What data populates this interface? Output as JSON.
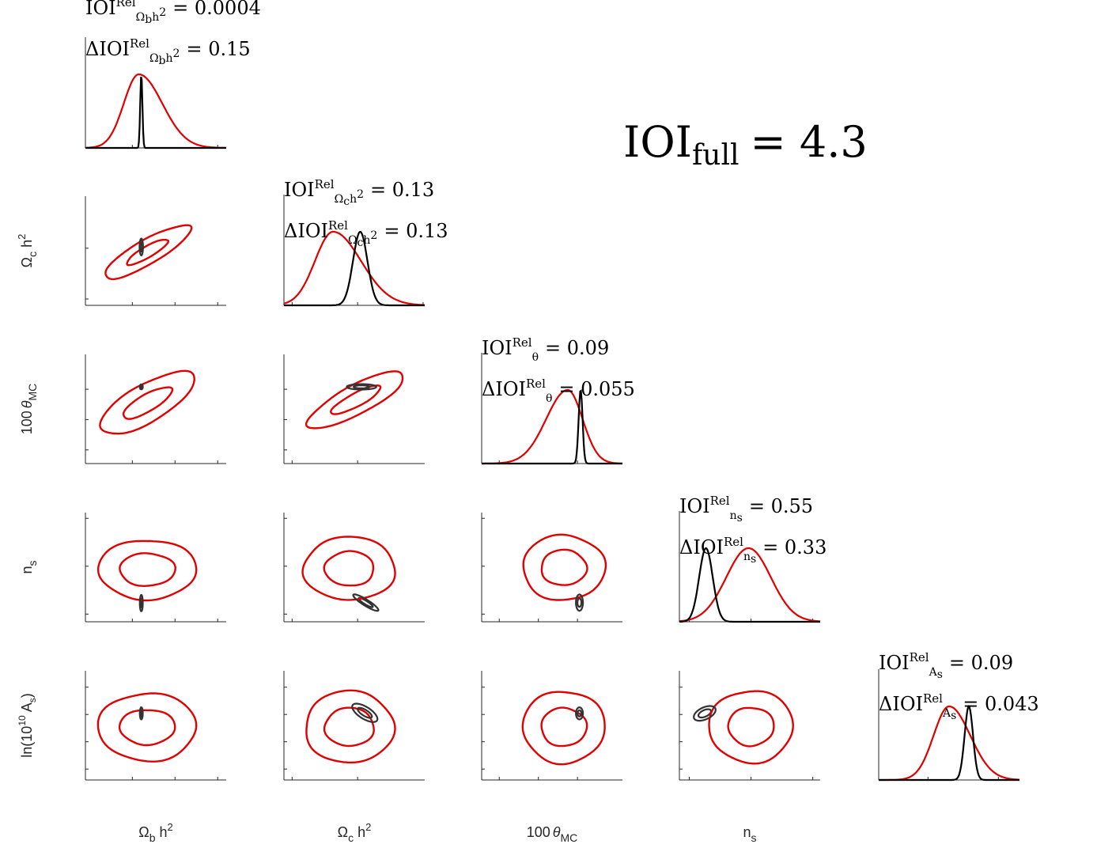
{
  "summary": {
    "prefix": "IOI",
    "sub": "full",
    "value": "= 4.3"
  },
  "colors": {
    "wide": "#e00000",
    "narrow": "#000000",
    "axis": "#262626"
  },
  "chart_data": {
    "type": "triangle-plot",
    "parameters": [
      {
        "id": "ombh2",
        "label": [
          "Ω",
          "b",
          " h",
          "2"
        ],
        "range": [
          0.009,
          0.042
        ],
        "ticks": [
          "0.02",
          "0.03",
          "0.04"
        ],
        "tick_values": [
          0.02,
          0.03,
          0.04
        ],
        "diag_ticks": [
          "0.02",
          "0.04"
        ],
        "diag_tick_values": [
          0.02,
          0.04
        ]
      },
      {
        "id": "omch2",
        "label": [
          "Ω",
          "c",
          " h",
          "2"
        ],
        "range": [
          0.0975,
          0.1405
        ],
        "ticks": [
          "0.1",
          "0.12"
        ],
        "tick_values": [
          0.1,
          0.12
        ],
        "diag_ticks": [
          "0.1",
          "0.12",
          "0.14"
        ],
        "diag_tick_values": [
          0.1,
          0.12,
          0.14
        ],
        "y_ticks": [
          "0.1",
          "0.12"
        ],
        "y_tick_values": [
          0.1,
          0.12
        ]
      },
      {
        "id": "theta",
        "label": [
          "100",
          "θ",
          "MC",
          ""
        ],
        "range": [
          1.0155,
          1.0515
        ],
        "ticks": [
          "1.02",
          "1.03",
          "1.04"
        ],
        "tick_values": [
          1.02,
          1.03,
          1.04
        ],
        "diag_ticks": [
          "1.02",
          "1.04"
        ],
        "diag_tick_values": [
          1.02,
          1.04
        ],
        "y_ticks": [
          "1.02",
          "1.03",
          "1.04"
        ],
        "y_tick_values": [
          1.02,
          1.03,
          1.04
        ]
      },
      {
        "id": "ns",
        "label": [
          "n",
          "s",
          "",
          ""
        ],
        "range": [
          0.942,
          1.056
        ],
        "ticks": [
          "0.95",
          "1",
          "1.05"
        ],
        "tick_values": [
          0.95,
          1,
          1.05
        ],
        "diag_ticks": [
          "0.95",
          "1",
          "1.05"
        ],
        "diag_tick_values": [
          0.95,
          1,
          1.05
        ],
        "y_ticks": [
          "0.95",
          "1",
          "1.05"
        ],
        "y_tick_values": [
          0.95,
          1,
          1.05
        ]
      },
      {
        "id": "logA",
        "label": [
          "ln(10",
          "10",
          " A",
          "s",
          ")"
        ],
        "range": [
          2.93,
          3.13
        ],
        "ticks": [
          "2.95",
          "3",
          "3.05",
          "3.1"
        ],
        "tick_values": [
          2.95,
          3,
          3.05,
          3.1
        ],
        "diag_ticks": [
          "3",
          "3.1"
        ],
        "diag_tick_values": [
          3,
          3.1
        ],
        "y_ticks": [
          "2.95",
          "3",
          "3.05",
          "3.1"
        ],
        "y_tick_values": [
          2.95,
          3,
          3.05,
          3.1
        ]
      }
    ],
    "marginals": [
      {
        "param": "ombh2",
        "ioi": "= 0.0004",
        "dioi": "= 0.15",
        "sym": "Ω",
        "symsub": "b",
        "symsub2": "h",
        "symsup": "2",
        "wide": {
          "mean": 0.0215,
          "sd_left": 0.0035,
          "sd_right": 0.0055
        },
        "narrow": {
          "mean": 0.0221,
          "sd": 0.00025
        }
      },
      {
        "param": "omch2",
        "ioi": "= 0.13",
        "dioi": "= 0.13",
        "sym": "Ω",
        "symsub": "c",
        "symsub2": "h",
        "symsup": "2",
        "wide": {
          "mean": 0.1125,
          "sd_left": 0.0055,
          "sd_right": 0.0085
        },
        "narrow": {
          "mean": 0.1208,
          "sd": 0.0022
        }
      },
      {
        "param": "theta",
        "ioi": "= 0.09",
        "dioi": "= 0.055",
        "sym": "θ",
        "symsub": "",
        "symsub2": "",
        "symsup": "",
        "wide": {
          "mean": 1.0375,
          "sd_left": 0.0055,
          "sd_right": 0.0038
        },
        "narrow": {
          "mean": 1.0408,
          "sd": 0.0005
        }
      },
      {
        "param": "ns",
        "ioi": "= 0.55",
        "dioi": "= 0.33",
        "sym": "n",
        "symsub": "s",
        "symsub2": "",
        "symsup": "",
        "wide": {
          "mean": 0.998,
          "sd_left": 0.018,
          "sd_right": 0.018
        },
        "narrow": {
          "mean": 0.9635,
          "sd": 0.0055
        }
      },
      {
        "param": "logA",
        "ioi": "= 0.09",
        "dioi": "= 0.043",
        "sym": "A",
        "symsub": "s",
        "symsub2": "",
        "symsup": "",
        "wide": {
          "mean": 3.03,
          "sd_left": 0.022,
          "sd_right": 0.03
        },
        "narrow": {
          "mean": 3.058,
          "sd": 0.006
        }
      }
    ],
    "joint": [
      {
        "x": "ombh2",
        "y": "omch2",
        "wide_center": [
          0.0235,
          0.1185
        ],
        "wide_rx": [
          0.0055,
          0.0115
        ],
        "wide_ry": [
          0.0022,
          0.0048
        ],
        "wide_angle_deg": -30,
        "narrow_center": [
          0.0221,
          0.1205
        ],
        "narrow_rx": [
          0.00022,
          0.0004
        ],
        "narrow_ry": [
          0.0018,
          0.0033
        ],
        "narrow_angle_deg": 0
      },
      {
        "x": "ombh2",
        "y": "theta",
        "wide_center": [
          0.0235,
          1.0355
        ],
        "wide_rx": [
          0.0065,
          0.0125
        ],
        "wide_ry": [
          0.0028,
          0.0062
        ],
        "wide_angle_deg": -30,
        "narrow_center": [
          0.0221,
          1.0408
        ],
        "narrow_rx": [
          0.0002,
          0.00035
        ],
        "narrow_ry": [
          0.0004,
          0.0008
        ],
        "narrow_angle_deg": 0
      },
      {
        "x": "ombh2",
        "y": "ns",
        "wide_center": [
          0.0235,
          0.9965
        ],
        "wide_rx": [
          0.0065,
          0.0115
        ],
        "wide_ry": [
          0.017,
          0.031
        ],
        "wide_angle_deg": 0,
        "narrow_center": [
          0.0221,
          0.9615
        ],
        "narrow_rx": [
          0.0002,
          0.00035
        ],
        "narrow_ry": [
          0.0045,
          0.0085
        ],
        "narrow_angle_deg": 0
      },
      {
        "x": "ombh2",
        "y": "logA",
        "wide_center": [
          0.0235,
          3.027
        ],
        "wide_rx": [
          0.0065,
          0.0115
        ],
        "wide_ry": [
          0.032,
          0.062
        ],
        "wide_angle_deg": 0,
        "narrow_center": [
          0.0221,
          3.052
        ],
        "narrow_rx": [
          0.0002,
          0.00035
        ],
        "narrow_ry": [
          0.006,
          0.011
        ],
        "narrow_angle_deg": 0
      },
      {
        "x": "omch2",
        "y": "theta",
        "wide_center": [
          0.1195,
          1.0365
        ],
        "wide_rx": [
          0.0085,
          0.0165
        ],
        "wide_ry": [
          0.0022,
          0.0048
        ],
        "wide_angle_deg": -28,
        "narrow_center": [
          0.1212,
          1.0408
        ],
        "narrow_rx": [
          0.0024,
          0.0045
        ],
        "narrow_ry": [
          0.0005,
          0.0009
        ],
        "narrow_angle_deg": 0
      },
      {
        "x": "omch2",
        "y": "ns",
        "wide_center": [
          0.1175,
          0.9975
        ],
        "wide_rx": [
          0.0075,
          0.014
        ],
        "wide_ry": [
          0.018,
          0.033
        ],
        "wide_angle_deg": 0,
        "narrow_center": [
          0.1225,
          0.962
        ],
        "narrow_rx": [
          0.0025,
          0.0045
        ],
        "narrow_ry": [
          0.0018,
          0.0032
        ],
        "narrow_angle_deg": 32
      },
      {
        "x": "omch2",
        "y": "logA",
        "wide_center": [
          0.1175,
          3.027
        ],
        "wide_rx": [
          0.0075,
          0.0135
        ],
        "wide_ry": [
          0.035,
          0.066
        ],
        "wide_angle_deg": 0,
        "narrow_center": [
          0.1222,
          3.053
        ],
        "narrow_rx": [
          0.0025,
          0.0044
        ],
        "narrow_ry": [
          0.0055,
          0.011
        ],
        "narrow_angle_deg": 32
      },
      {
        "x": "theta",
        "y": "ns",
        "wide_center": [
          1.0365,
          0.9985
        ],
        "wide_rx": [
          0.0058,
          0.0105
        ],
        "wide_ry": [
          0.0185,
          0.034
        ],
        "wide_angle_deg": 0,
        "narrow_center": [
          1.0405,
          0.962
        ],
        "narrow_rx": [
          0.0005,
          0.0009
        ],
        "narrow_ry": [
          0.0045,
          0.0085
        ],
        "narrow_angle_deg": 0
      },
      {
        "x": "theta",
        "y": "logA",
        "wide_center": [
          1.0365,
          3.027
        ],
        "wide_rx": [
          0.0058,
          0.0105
        ],
        "wide_ry": [
          0.035,
          0.066
        ],
        "wide_angle_deg": 0,
        "narrow_center": [
          1.0405,
          3.052
        ],
        "narrow_rx": [
          0.0005,
          0.0009
        ],
        "narrow_ry": [
          0.0055,
          0.011
        ],
        "narrow_angle_deg": 0
      },
      {
        "x": "ns",
        "y": "logA",
        "wide_center": [
          1.0,
          3.028
        ],
        "wide_rx": [
          0.0185,
          0.034
        ],
        "wide_ry": [
          0.035,
          0.066
        ],
        "wide_angle_deg": 0,
        "narrow_center": [
          0.9625,
          3.052
        ],
        "narrow_rx": [
          0.0055,
          0.0095
        ],
        "narrow_ry": [
          0.006,
          0.011
        ],
        "narrow_angle_deg": -25
      }
    ]
  }
}
